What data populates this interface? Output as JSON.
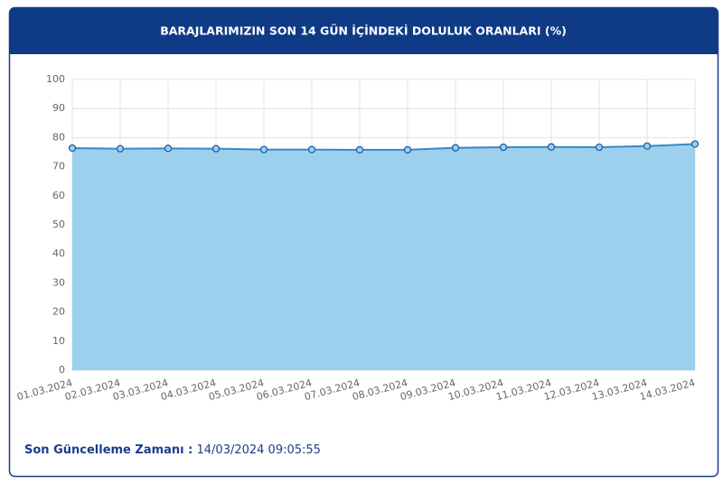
{
  "chart_data": {
    "type": "area",
    "title": "BARAJLARIMIZIN SON 14 GÜN İÇİNDEKİ DOLULUK ORANLARI (%)",
    "categories": [
      "01.03.2024",
      "02.03.2024",
      "03.03.2024",
      "04.03.2024",
      "05.03.2024",
      "06.03.2024",
      "07.03.2024",
      "08.03.2024",
      "09.03.2024",
      "10.03.2024",
      "11.03.2024",
      "12.03.2024",
      "13.03.2024",
      "14.03.2024"
    ],
    "values": [
      76.4,
      76.2,
      76.3,
      76.2,
      75.9,
      75.9,
      75.8,
      75.8,
      76.5,
      76.7,
      76.8,
      76.7,
      77.1,
      77.8
    ],
    "color": "#3a87c9",
    "fill_color": "#9dd0ec",
    "ylim": [
      0,
      100
    ],
    "yticks": [
      0,
      10,
      20,
      30,
      40,
      50,
      60,
      70,
      80,
      90,
      100
    ],
    "grid": true
  },
  "footer": {
    "label": "Son Güncelleme Zamanı :",
    "value": "14/03/2024 09:05:55"
  }
}
